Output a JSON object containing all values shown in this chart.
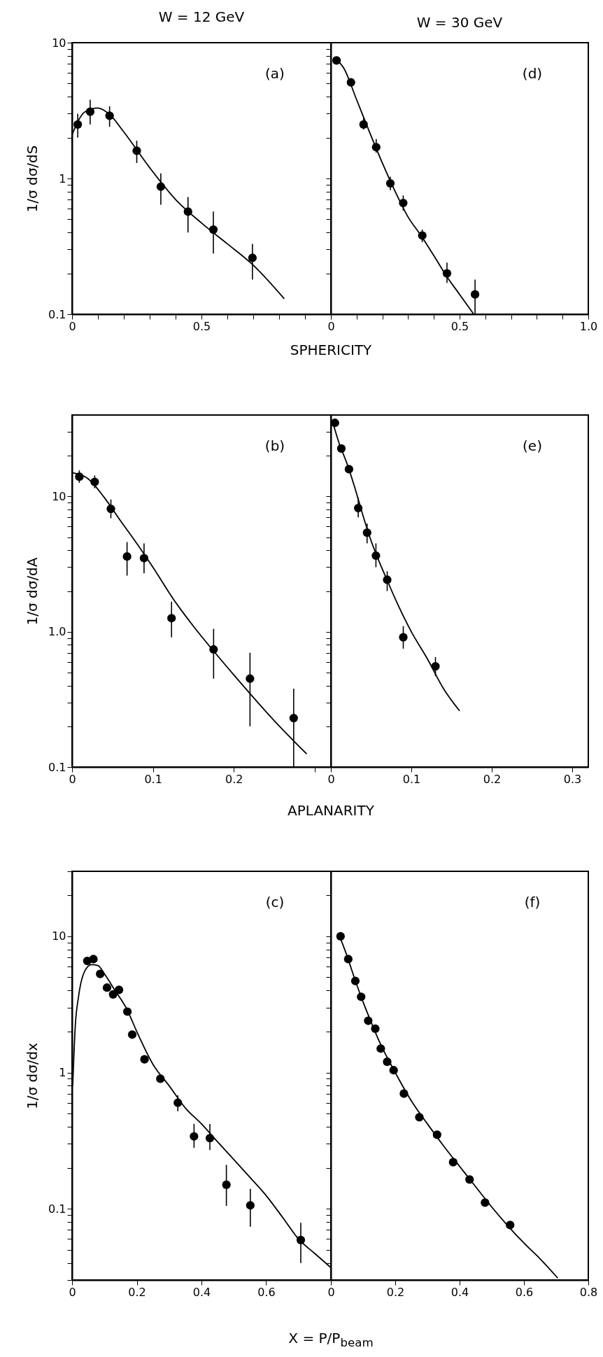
{
  "chart_data": [
    {
      "type": "scatter",
      "title": "W = 12 GeV",
      "xlabel": "SPHERICITY",
      "ylabel": "1/σ  dσ/dS",
      "annotations": [
        "(a)"
      ],
      "log": "y",
      "xlim": [
        0,
        1
      ],
      "ylim": [
        0.1,
        10
      ],
      "xticks": [
        0,
        {
          "value": 0.1,
          "label": null
        },
        {
          "value": 0.2,
          "label": null
        },
        {
          "value": 0.3,
          "label": null
        },
        {
          "value": 0.4,
          "label": null
        },
        0.5,
        {
          "value": 0.6,
          "label": null
        },
        {
          "value": 0.7,
          "label": null
        },
        {
          "value": 0.8,
          "label": null
        },
        {
          "value": 0.9,
          "label": null
        },
        {
          "value": 1,
          "label": null
        }
      ],
      "yticks": [
        0.1,
        {
          "value": 0.2,
          "label": null
        },
        {
          "value": 0.3,
          "label": null
        },
        {
          "value": 0.4,
          "label": null
        },
        {
          "value": 0.5,
          "label": null
        },
        {
          "value": 0.6,
          "label": null
        },
        {
          "value": 0.7,
          "label": null
        },
        {
          "value": 0.8,
          "label": null
        },
        {
          "value": 0.9,
          "label": null
        },
        1,
        {
          "value": 2,
          "label": null
        },
        {
          "value": 3,
          "label": null
        },
        {
          "value": 4,
          "label": null
        },
        {
          "value": 5,
          "label": null
        },
        {
          "value": 6,
          "label": null
        },
        {
          "value": 7,
          "label": null
        },
        {
          "value": 8,
          "label": null
        },
        {
          "value": 9,
          "label": null
        },
        10
      ],
      "series": [
        {
          "marker": "circle",
          "color": "#000000",
          "x": [
            0.022,
            0.07,
            0.145,
            0.25,
            0.343,
            0.448,
            0.546,
            0.697
          ],
          "values": [
            2.5,
            3.1,
            2.9,
            1.6,
            0.87,
            0.57,
            0.42,
            0.26
          ],
          "errors": [
            [
              2.0,
              3.0
            ],
            [
              2.5,
              3.8
            ],
            [
              2.4,
              3.4
            ],
            [
              1.3,
              1.9
            ],
            [
              0.64,
              1.09
            ],
            [
              0.4,
              0.73
            ],
            [
              0.28,
              0.57
            ],
            [
              0.18,
              0.33
            ]
          ]
        },
        {
          "type": "line",
          "color": "#000000",
          "x": [
            0,
            0.05,
            0.1,
            0.15,
            0.2,
            0.3,
            0.4,
            0.5,
            0.6,
            0.7,
            0.82
          ],
          "values": [
            2.1,
            3.1,
            3.3,
            2.9,
            2.2,
            1.2,
            0.7,
            0.47,
            0.33,
            0.23,
            0.13
          ]
        }
      ]
    },
    {
      "type": "scatter",
      "title": "W = 30 GeV",
      "annotations": [
        "(d)"
      ],
      "log": "y",
      "xlim": [
        0,
        1
      ],
      "ylim": [
        0.1,
        10
      ],
      "tick_labels": "x",
      "xticks": [
        0,
        {
          "value": 0.1,
          "label": null
        },
        {
          "value": 0.2,
          "label": null
        },
        {
          "value": 0.3,
          "label": null
        },
        {
          "value": 0.4,
          "label": null
        },
        0.5,
        {
          "value": 0.6,
          "label": null
        },
        {
          "value": 0.7,
          "label": null
        },
        {
          "value": 0.8,
          "label": null
        },
        {
          "value": 0.9,
          "label": null
        },
        {
          "value": 1,
          "label": "1.0"
        }
      ],
      "yticks": [
        0.1,
        0.2,
        0.3,
        0.4,
        0.5,
        0.6,
        0.7,
        0.8,
        0.9,
        1,
        2,
        3,
        4,
        5,
        6,
        7,
        8,
        9,
        10
      ],
      "series": [
        {
          "marker": "circle",
          "color": "#000000",
          "x": [
            0.022,
            0.078,
            0.127,
            0.176,
            0.231,
            0.281,
            0.355,
            0.451,
            0.56
          ],
          "values": [
            7.4,
            5.1,
            2.5,
            1.7,
            0.92,
            0.66,
            0.38,
            0.2,
            0.14
          ],
          "errors": [
            null,
            null,
            [
              2.3,
              2.8
            ],
            [
              1.55,
              1.95
            ],
            [
              0.82,
              1.03
            ],
            [
              0.58,
              0.75
            ],
            [
              0.34,
              0.42
            ],
            [
              0.17,
              0.24
            ],
            [
              0.1,
              0.18
            ]
          ]
        },
        {
          "type": "line",
          "color": "#000000",
          "x": [
            0.01,
            0.05,
            0.1,
            0.15,
            0.2,
            0.25,
            0.3,
            0.35,
            0.4,
            0.45,
            0.5,
            0.555
          ],
          "values": [
            7.8,
            6.5,
            3.8,
            2.2,
            1.3,
            0.8,
            0.52,
            0.38,
            0.27,
            0.19,
            0.14,
            0.1
          ]
        }
      ]
    },
    {
      "type": "scatter",
      "xlabel": "APLANARITY",
      "ylabel": "1/σ  dσ/dA",
      "annotations": [
        "(b)"
      ],
      "log": "y",
      "xlim": [
        0,
        0.32
      ],
      "ylim": [
        0.1,
        40
      ],
      "xticks": [
        0,
        0.1,
        0.2,
        {
          "value": 0.3,
          "label": null
        }
      ],
      "yticks": [
        0.1,
        {
          "value": 0.2,
          "label": null
        },
        {
          "value": 0.3,
          "label": null
        },
        {
          "value": 0.4,
          "label": null
        },
        {
          "value": 0.5,
          "label": null
        },
        {
          "value": 0.6,
          "label": null
        },
        {
          "value": 0.7,
          "label": null
        },
        {
          "value": 0.8,
          "label": null
        },
        {
          "value": 0.9,
          "label": null
        },
        {
          "value": 1,
          "label": "1.0"
        },
        {
          "value": 2,
          "label": null
        },
        {
          "value": 3,
          "label": null
        },
        {
          "value": 4,
          "label": null
        },
        {
          "value": 5,
          "label": null
        },
        {
          "value": 6,
          "label": null
        },
        {
          "value": 7,
          "label": null
        },
        {
          "value": 8,
          "label": null
        },
        {
          "value": 9,
          "label": null
        },
        10,
        {
          "value": 20,
          "label": null
        },
        {
          "value": 30,
          "label": null
        }
      ],
      "series": [
        {
          "marker": "circle",
          "color": "#000000",
          "x": [
            0.009,
            0.028,
            0.048,
            0.068,
            0.089,
            0.123,
            0.175,
            0.22,
            0.274
          ],
          "values": [
            14,
            12.8,
            8.1,
            3.6,
            3.5,
            1.26,
            0.74,
            0.45,
            0.23
          ],
          "errors": [
            [
              12.6,
              15.6
            ],
            [
              11.5,
              14.3
            ],
            [
              6.9,
              9.5
            ],
            [
              2.6,
              4.6
            ],
            [
              2.7,
              4.5
            ],
            [
              0.91,
              1.67
            ],
            [
              0.45,
              1.05
            ],
            [
              0.2,
              0.7
            ],
            [
              0.1,
              0.38
            ]
          ]
        },
        {
          "type": "line",
          "color": "#000000",
          "x": [
            0,
            0.02,
            0.04,
            0.06,
            0.08,
            0.1,
            0.125,
            0.15,
            0.175,
            0.2,
            0.25,
            0.29
          ],
          "values": [
            15,
            13.5,
            9.8,
            6.6,
            4.5,
            3.0,
            1.75,
            1.1,
            0.72,
            0.48,
            0.22,
            0.125
          ]
        }
      ]
    },
    {
      "type": "scatter",
      "annotations": [
        "(e)"
      ],
      "log": "y",
      "xlim": [
        0,
        0.32
      ],
      "ylim": [
        0.1,
        40
      ],
      "tick_labels": "x",
      "xticks": [
        0,
        0.1,
        0.2,
        0.3
      ],
      "yticks": [
        0.1,
        0.2,
        0.3,
        0.4,
        0.5,
        0.6,
        0.7,
        0.8,
        0.9,
        1,
        2,
        3,
        4,
        5,
        6,
        7,
        8,
        9,
        10,
        20,
        30
      ],
      "series": [
        {
          "marker": "circle",
          "color": "#000000",
          "x": [
            0.005,
            0.013,
            0.0225,
            0.034,
            0.045,
            0.056,
            0.07,
            0.09,
            0.13
          ],
          "values": [
            35,
            22.6,
            15.9,
            8.2,
            5.4,
            3.65,
            2.42,
            0.91,
            0.555
          ],
          "errors": [
            null,
            null,
            null,
            [
              7,
              9.8
            ],
            [
              4.5,
              6.3
            ],
            [
              3.0,
              4.5
            ],
            [
              2.0,
              2.8
            ],
            [
              0.75,
              1.1
            ],
            [
              0.47,
              0.65
            ]
          ]
        },
        {
          "type": "line",
          "color": "#000000",
          "x": [
            0.002,
            0.01,
            0.02,
            0.03,
            0.04,
            0.05,
            0.06,
            0.07,
            0.08,
            0.1,
            0.12,
            0.14,
            0.16
          ],
          "values": [
            36,
            25,
            17.5,
            11.5,
            7.2,
            4.7,
            3.3,
            2.4,
            1.75,
            1.0,
            0.63,
            0.38,
            0.26
          ]
        }
      ]
    },
    {
      "type": "scatter",
      "xlabel": "X = P/P$_{beam}$",
      "ylabel": "1/σ  dσ/dx",
      "annotations": [
        "(c)"
      ],
      "log": "y",
      "xlim": [
        0,
        0.8
      ],
      "ylim": [
        0.03,
        30
      ],
      "xticks": [
        0,
        0.2,
        0.4,
        0.6,
        {
          "value": 0.8,
          "label": null
        }
      ],
      "yticks": [
        {
          "value": 0.03,
          "label": null
        },
        {
          "value": 0.04,
          "label": null
        },
        {
          "value": 0.05,
          "label": null
        },
        {
          "value": 0.06,
          "label": null
        },
        {
          "value": 0.07,
          "label": null
        },
        {
          "value": 0.08,
          "label": null
        },
        {
          "value": 0.09,
          "label": null
        },
        0.1,
        {
          "value": 0.2,
          "label": null
        },
        {
          "value": 0.3,
          "label": null
        },
        {
          "value": 0.4,
          "label": null
        },
        {
          "value": 0.5,
          "label": null
        },
        {
          "value": 0.6,
          "label": null
        },
        {
          "value": 0.7,
          "label": null
        },
        {
          "value": 0.8,
          "label": null
        },
        {
          "value": 0.9,
          "label": null
        },
        1,
        {
          "value": 2,
          "label": null
        },
        {
          "value": 3,
          "label": null
        },
        {
          "value": 4,
          "label": null
        },
        {
          "value": 5,
          "label": null
        },
        {
          "value": 6,
          "label": null
        },
        {
          "value": 7,
          "label": null
        },
        {
          "value": 8,
          "label": null
        },
        {
          "value": 9,
          "label": null
        },
        10,
        {
          "value": 20,
          "label": null
        },
        {
          "value": 30,
          "label": null
        }
      ],
      "series": [
        {
          "marker": "circle",
          "color": "#000000",
          "x": [
            0.047,
            0.066,
            0.087,
            0.108,
            0.127,
            0.145,
            0.171,
            0.186,
            0.224,
            0.273,
            0.327,
            0.377,
            0.426,
            0.477,
            0.551,
            0.707
          ],
          "values": [
            6.6,
            6.8,
            5.3,
            4.2,
            3.75,
            4.05,
            2.8,
            1.9,
            1.25,
            0.9,
            0.6,
            0.34,
            0.33,
            0.15,
            0.106,
            0.059
          ],
          "errors": [
            null,
            null,
            null,
            null,
            null,
            null,
            null,
            null,
            null,
            null,
            [
              0.52,
              0.68
            ],
            [
              0.28,
              0.42
            ],
            [
              0.27,
              0.42
            ],
            [
              0.105,
              0.21
            ],
            [
              0.074,
              0.14
            ],
            [
              0.04,
              0.079
            ]
          ]
        },
        {
          "type": "line",
          "color": "#000000",
          "x": [
            0.002,
            0.01,
            0.02,
            0.04,
            0.06,
            0.08,
            0.1,
            0.13,
            0.17,
            0.2,
            0.25,
            0.3,
            0.35,
            0.4,
            0.45,
            0.5,
            0.55,
            0.6,
            0.65,
            0.7,
            0.75,
            0.8
          ],
          "values": [
            0.8,
            2.2,
            3.6,
            5.6,
            6.2,
            6.1,
            5.3,
            4.1,
            2.9,
            2.0,
            1.15,
            0.8,
            0.55,
            0.42,
            0.31,
            0.23,
            0.17,
            0.125,
            0.087,
            0.06,
            0.047,
            0.037
          ]
        }
      ]
    },
    {
      "type": "scatter",
      "annotations": [
        "(f)"
      ],
      "log": "y",
      "xlim": [
        0,
        0.8
      ],
      "ylim": [
        0.03,
        30
      ],
      "tick_labels": "x",
      "xticks": [
        0,
        0.2,
        0.4,
        0.6,
        0.8
      ],
      "yticks": [
        0.03,
        0.04,
        0.05,
        0.06,
        0.07,
        0.08,
        0.09,
        0.1,
        0.2,
        0.3,
        0.4,
        0.5,
        0.6,
        0.7,
        0.8,
        0.9,
        1,
        2,
        3,
        4,
        5,
        6,
        7,
        8,
        9,
        10,
        20,
        30
      ],
      "series": [
        {
          "marker": "circle",
          "color": "#000000",
          "x": [
            0.03,
            0.054,
            0.076,
            0.094,
            0.116,
            0.138,
            0.155,
            0.175,
            0.195,
            0.227,
            0.275,
            0.33,
            0.38,
            0.431,
            0.479,
            0.557
          ],
          "values": [
            10,
            6.8,
            4.7,
            3.6,
            2.4,
            2.1,
            1.5,
            1.2,
            1.04,
            0.7,
            0.47,
            0.35,
            0.22,
            0.164,
            0.111,
            0.076
          ]
        },
        {
          "type": "line",
          "color": "#000000",
          "x": [
            0.025,
            0.05,
            0.075,
            0.1,
            0.125,
            0.15,
            0.2,
            0.25,
            0.3,
            0.35,
            0.4,
            0.45,
            0.5,
            0.55,
            0.6,
            0.65,
            0.705
          ],
          "values": [
            10.3,
            7.2,
            4.8,
            3.3,
            2.35,
            1.7,
            1.0,
            0.62,
            0.42,
            0.29,
            0.205,
            0.145,
            0.103,
            0.075,
            0.056,
            0.043,
            0.031
          ]
        }
      ]
    }
  ]
}
